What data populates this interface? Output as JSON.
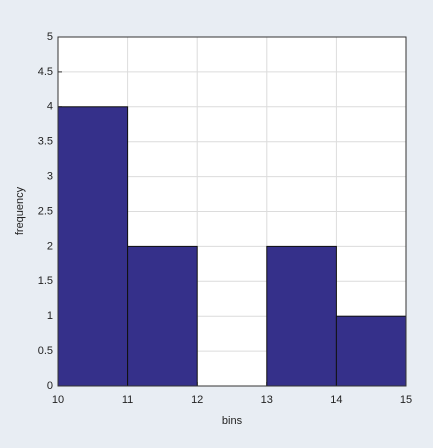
{
  "chart_data": {
    "type": "histogram",
    "xlabel": "bins",
    "ylabel": "frequency",
    "bins": [
      10,
      11,
      12,
      13,
      14,
      15
    ],
    "values": [
      4,
      2,
      0,
      2,
      1
    ],
    "color": "#35308a",
    "xlim": [
      10,
      15
    ],
    "xticks": [
      10,
      11,
      12,
      13,
      14,
      15
    ],
    "ylim": [
      0,
      5
    ],
    "yticks": [
      0,
      0.5,
      1,
      1.5,
      2,
      2.5,
      3,
      3.5,
      4,
      4.5,
      5
    ],
    "grid": true
  }
}
